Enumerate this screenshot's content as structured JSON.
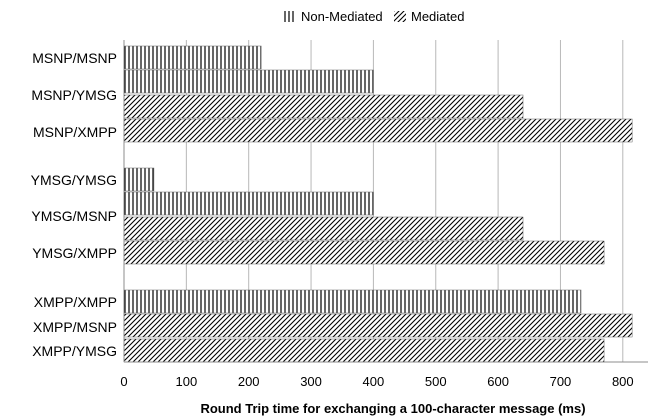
{
  "chart_data": {
    "type": "bar",
    "orientation": "horizontal",
    "xlabel": "Round Trip time for exchanging a 100-character message (ms)",
    "xlim": [
      0,
      850
    ],
    "xticks": [
      0,
      100,
      200,
      300,
      400,
      500,
      600,
      700,
      800
    ],
    "grid": true,
    "legend_position": "top",
    "series": [
      {
        "name": "Non-Mediated",
        "pattern": "vertical-lines"
      },
      {
        "name": "Mediated",
        "pattern": "diagonal-hatch"
      }
    ],
    "bars": [
      {
        "label": "MSNP/MSNP",
        "series": "Non-Mediated",
        "value": 220
      },
      {
        "label": "MSNP/YMSG",
        "series": "Non-Mediated",
        "value": 400
      },
      {
        "label": "MSNP/YMSG",
        "series": "Mediated",
        "value": 640
      },
      {
        "label": "MSNP/XMPP",
        "series": "Mediated",
        "value": 815
      },
      {
        "label": "YMSG/YMSG",
        "series": "Non-Mediated",
        "value": 48
      },
      {
        "label": "YMSG/MSNP",
        "series": "Non-Mediated",
        "value": 400
      },
      {
        "label": "YMSG/MSNP",
        "series": "Mediated",
        "value": 640
      },
      {
        "label": "YMSG/XMPP",
        "series": "Mediated",
        "value": 770
      },
      {
        "label": "XMPP/XMPP",
        "series": "Non-Mediated",
        "value": 733
      },
      {
        "label": "XMPP/MSNP",
        "series": "Mediated",
        "value": 815
      },
      {
        "label": "XMPP/YMSG",
        "series": "Mediated",
        "value": 770
      }
    ],
    "categories": [
      "MSNP/MSNP",
      "MSNP/YMSG",
      "MSNP/XMPP",
      "YMSG/YMSG",
      "YMSG/MSNP",
      "YMSG/XMPP",
      "XMPP/XMPP",
      "XMPP/MSNP",
      "XMPP/YMSG"
    ]
  }
}
